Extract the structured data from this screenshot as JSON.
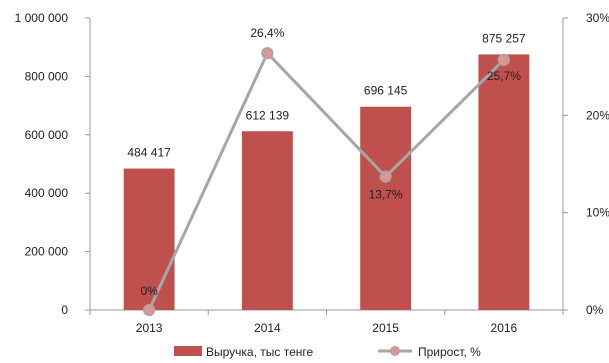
{
  "chart_data": {
    "type": "bar+line",
    "categories": [
      "2013",
      "2014",
      "2015",
      "2016"
    ],
    "series": [
      {
        "name": "Выручка, тыс тенге",
        "type": "bar",
        "axis": "left",
        "values": [
          484417,
          612139,
          696145,
          875257
        ],
        "labels": [
          "484 417",
          "612 139",
          "696 145",
          "875 257"
        ],
        "color": "#c0504d"
      },
      {
        "name": "Прирост, %",
        "type": "line",
        "axis": "right",
        "values": [
          0,
          26.4,
          13.7,
          25.7
        ],
        "labels": [
          "0%",
          "26,4%",
          "13,7%",
          "25,7%"
        ],
        "color": "#a6a6a6",
        "marker_color": "#d99694"
      }
    ],
    "y_left": {
      "lim": [
        0,
        1000000
      ],
      "ticks": [
        0,
        200000,
        400000,
        600000,
        800000,
        1000000
      ],
      "tick_labels": [
        "0",
        "200 000",
        "400 000",
        "600 000",
        "800 000",
        "1 000 000"
      ]
    },
    "y_right": {
      "lim": [
        0,
        30
      ],
      "ticks": [
        0,
        10,
        20,
        30
      ],
      "tick_labels": [
        "0%",
        "10%",
        "20%",
        "30%"
      ]
    },
    "grid": false,
    "legend_position": "bottom"
  }
}
